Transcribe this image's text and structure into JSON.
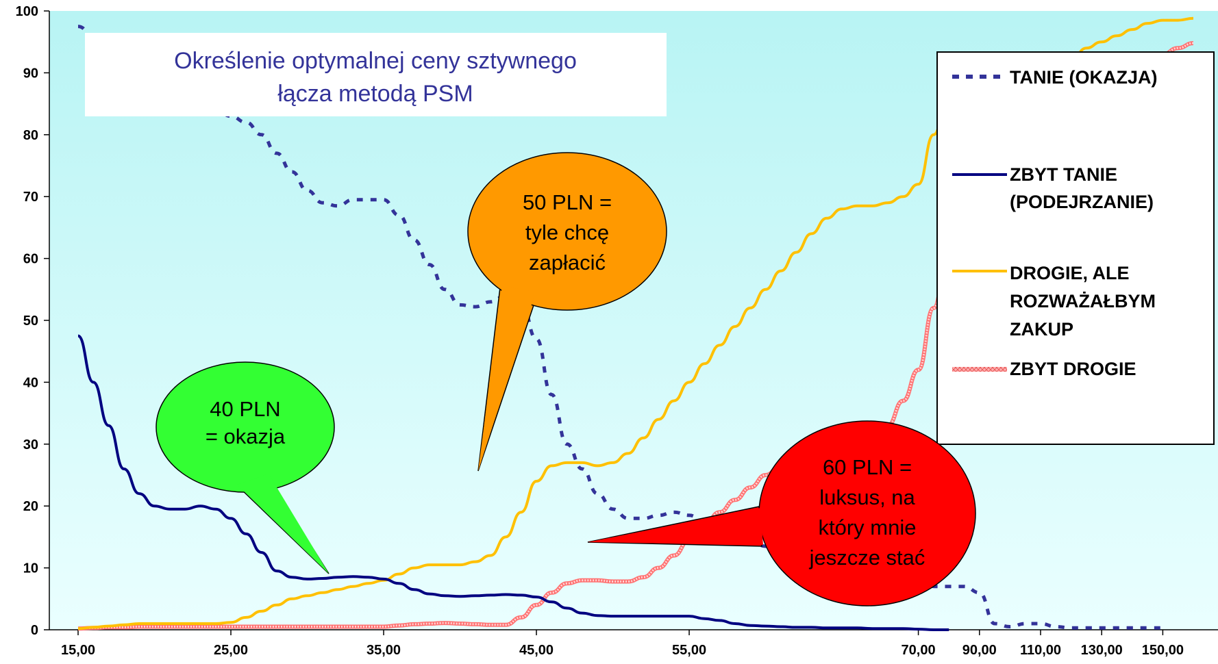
{
  "chart_data": {
    "type": "line",
    "title": "Określenie optymalnej ceny sztywnego łącza metodą PSM",
    "title_lines": [
      "Określenie optymalnej ceny sztywnego",
      "łącza metodą PSM"
    ],
    "xlabel": "",
    "ylabel": "",
    "ylim": [
      0,
      100
    ],
    "xlim": [
      15,
      160
    ],
    "y_ticks": [
      "0",
      "10",
      "20",
      "30",
      "40",
      "50",
      "60",
      "70",
      "80",
      "90",
      "100"
    ],
    "x_ticks": [
      {
        "value": 15,
        "label": "15,00"
      },
      {
        "value": 25,
        "label": "25,00"
      },
      {
        "value": 35,
        "label": "35,00"
      },
      {
        "value": 45,
        "label": "45,00"
      },
      {
        "value": 55,
        "label": "55,00"
      },
      {
        "value": 70,
        "label": "70,00"
      },
      {
        "value": 90,
        "label": "90,00"
      },
      {
        "value": 110,
        "label": "110,00"
      },
      {
        "value": 130,
        "label": "130,00"
      },
      {
        "value": 150,
        "label": "150,00"
      }
    ],
    "grid": false,
    "legend_position": "right",
    "x": [
      15,
      16,
      17,
      18,
      19,
      20,
      21,
      22,
      23,
      24,
      25,
      26,
      27,
      28,
      29,
      30,
      31,
      32,
      33,
      34,
      35,
      36,
      37,
      38,
      39,
      40,
      41,
      42,
      43,
      44,
      45,
      46,
      47,
      48,
      49,
      50,
      51,
      52,
      53,
      54,
      55,
      56,
      57,
      58,
      59,
      60,
      61,
      62,
      63,
      64,
      65,
      66,
      67,
      68,
      69,
      70,
      75,
      80,
      85,
      90,
      95,
      100,
      105,
      110,
      115,
      120,
      125,
      130,
      135,
      140,
      145,
      150,
      155,
      160
    ],
    "series": [
      {
        "name": "TANIE (OKAZJA)",
        "color": "#333399",
        "style": "dotted",
        "values": [
          97.5,
          96,
          94,
          92,
          90,
          88,
          87,
          86,
          85,
          84,
          83,
          82,
          80,
          77,
          74,
          71,
          69,
          68.5,
          69.5,
          69.5,
          69.5,
          67,
          63,
          59,
          55,
          52.5,
          52.2,
          53,
          54,
          53,
          47,
          38,
          30,
          26,
          22,
          19.5,
          18,
          18,
          18.5,
          19,
          18.5,
          17.5,
          16.5,
          15.5,
          14.5,
          13.5,
          12.5,
          12,
          11.5,
          11,
          10.5,
          10,
          9.8,
          9.5,
          9,
          8.5,
          7,
          7,
          7,
          6,
          1,
          0.5,
          1,
          1,
          0.5,
          0.3,
          0.3,
          0.3,
          0.3,
          0.3,
          0.3,
          0.3,
          null,
          null
        ]
      },
      {
        "name": "ZBYT TANIE (PODEJRZANIE)",
        "color": "#000080",
        "style": "solid",
        "values": [
          47.5,
          40,
          33,
          26,
          22,
          20,
          19.5,
          19.5,
          20,
          19.5,
          18,
          15.5,
          12.5,
          9.5,
          8.5,
          8.2,
          8.3,
          8.5,
          8.6,
          8.5,
          8.2,
          7.5,
          6.5,
          5.8,
          5.5,
          5.4,
          5.5,
          5.6,
          5.7,
          5.6,
          5.3,
          4.5,
          3.5,
          2.7,
          2.3,
          2.2,
          2.2,
          2.2,
          2.2,
          2.2,
          2.2,
          1.8,
          1.5,
          1,
          0.7,
          0.6,
          0.5,
          0.4,
          0.4,
          0.3,
          0.3,
          0.3,
          0.2,
          0.2,
          0.2,
          0.1,
          0,
          0,
          null,
          null,
          null,
          null,
          null,
          null,
          null,
          null,
          null,
          null,
          null,
          null,
          null,
          null,
          null,
          null
        ]
      },
      {
        "name": "DROGIE, ALE ROZWAŻAŁBYM ZAKUP",
        "color": "#FFC000",
        "style": "solid",
        "values": [
          0.2,
          0.4,
          0.6,
          0.8,
          1,
          1,
          1,
          1,
          1,
          1,
          1.2,
          2,
          3,
          4,
          5,
          5.5,
          6,
          6.5,
          7,
          7.5,
          8,
          9,
          10,
          10.5,
          10.5,
          10.5,
          11,
          12,
          15,
          19,
          24,
          26.5,
          27,
          27,
          26.5,
          27,
          28.5,
          31,
          34,
          37,
          40,
          43,
          46,
          49,
          52,
          55,
          58,
          61,
          64,
          66.5,
          68,
          68.5,
          68.5,
          69,
          70,
          72,
          80,
          87,
          89,
          88.5,
          88.5,
          89,
          89,
          89.5,
          90,
          92,
          94,
          95,
          96,
          97,
          98,
          98.5,
          98.5,
          98.8
        ]
      },
      {
        "name": "ZBYT DROGIE",
        "color": "#FF8080",
        "style": "hatched",
        "values": [
          0.2,
          0.3,
          0.4,
          0.4,
          0.5,
          0.5,
          0.5,
          0.5,
          0.5,
          0.5,
          0.5,
          0.5,
          0.5,
          0.5,
          0.5,
          0.5,
          0.5,
          0.5,
          0.5,
          0.5,
          0.5,
          0.7,
          0.9,
          1,
          1.1,
          1,
          0.9,
          0.8,
          0.8,
          2,
          4,
          6,
          7.5,
          8,
          8,
          7.8,
          7.8,
          8.5,
          10,
          12,
          14.5,
          17,
          19,
          21,
          23,
          25,
          26.5,
          28,
          29.5,
          30.3,
          30.5,
          30.5,
          31,
          33,
          37,
          42,
          52,
          62,
          63,
          62.5,
          63,
          65,
          67,
          68,
          70,
          75,
          80,
          85,
          88,
          90,
          92,
          93,
          94,
          94.8
        ]
      }
    ]
  },
  "legend": [
    {
      "lines": [
        "TANIE (OKAZJA)"
      ]
    },
    {
      "lines": [
        "ZBYT TANIE",
        "(PODEJRZANIE)"
      ]
    },
    {
      "lines": [
        "DROGIE, ALE",
        "ROZWAŻAŁBYM",
        "ZAKUP"
      ]
    },
    {
      "lines": [
        "ZBYT DROGIE"
      ]
    }
  ],
  "callouts": [
    {
      "lines": [
        "40 PLN",
        "= okazja"
      ],
      "color": "#33FF33"
    },
    {
      "lines": [
        "50 PLN =",
        "tyle chcę",
        "zapłacić"
      ],
      "color": "#FF9900"
    },
    {
      "lines": [
        "60 PLN =",
        "luksus, na",
        "który mnie",
        "jeszcze stać"
      ],
      "color": "#FF0000"
    }
  ],
  "colors": {
    "plot_gradient_top": "#B8F4F4",
    "plot_gradient_bottom": "#EAFFFF"
  }
}
